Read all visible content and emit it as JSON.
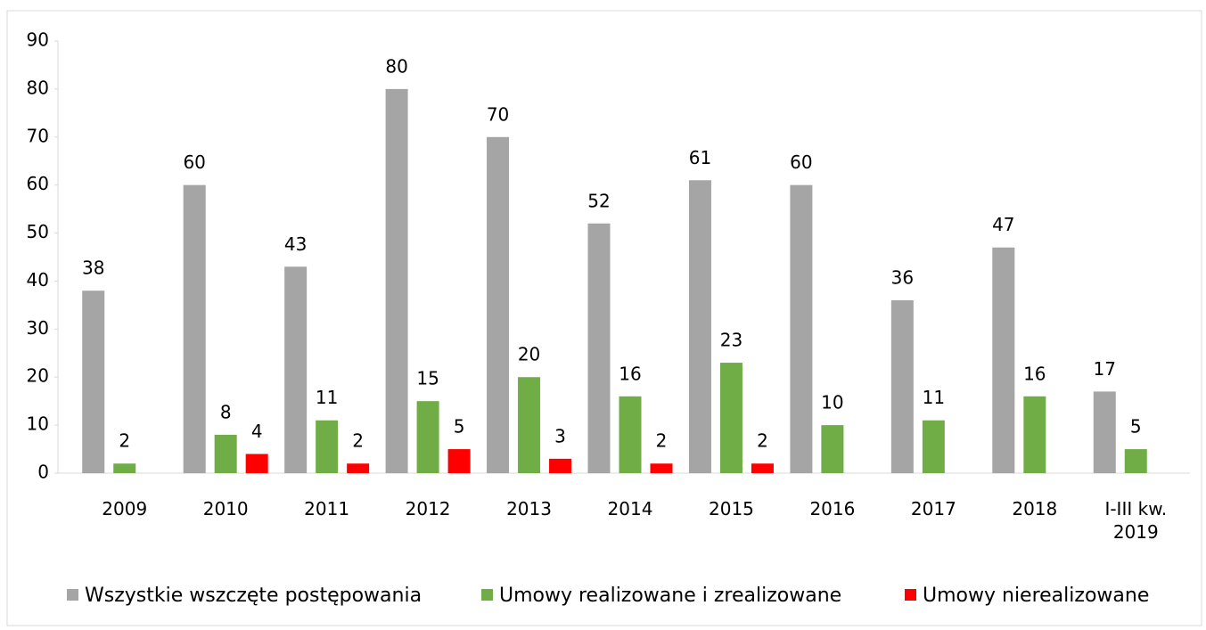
{
  "chart_data": {
    "type": "bar",
    "categories": [
      "2009",
      "2010",
      "2011",
      "2012",
      "2013",
      "2014",
      "2015",
      "2016",
      "2017",
      "2018",
      "I-III kw. 2019"
    ],
    "series": [
      {
        "name": "Wszystkie wszczęte postępowania",
        "color": "#a5a5a5",
        "values": [
          38,
          60,
          43,
          80,
          70,
          52,
          61,
          60,
          36,
          47,
          17
        ]
      },
      {
        "name": "Umowy realizowane i zrealizowane",
        "color": "#70ad47",
        "values": [
          2,
          8,
          11,
          15,
          20,
          16,
          23,
          10,
          11,
          16,
          5
        ]
      },
      {
        "name": "Umowy nierealizowane",
        "color": "#ff0000",
        "values": [
          null,
          4,
          2,
          5,
          3,
          2,
          2,
          null,
          null,
          null,
          null
        ]
      }
    ],
    "ylim": [
      0,
      90
    ],
    "yticks": [
      0,
      10,
      20,
      30,
      40,
      50,
      60,
      70,
      80,
      90
    ],
    "grid": false,
    "legend": "bottom"
  }
}
